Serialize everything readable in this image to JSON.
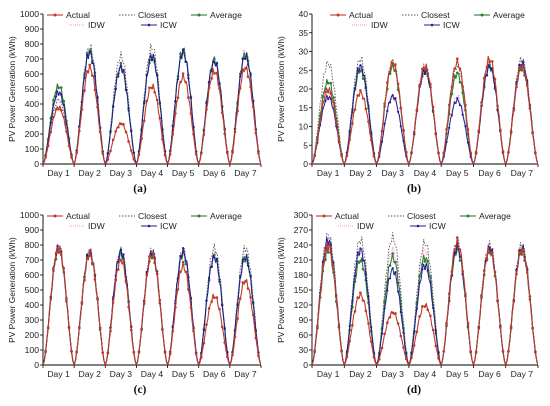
{
  "figure": {
    "panels": [
      "(a)",
      "(b)",
      "(c)",
      "(d)"
    ]
  },
  "colors": {
    "Actual": "#c0392b",
    "Closest": "#555555",
    "Average": "#2e7d32",
    "IDW": "#ff7bd5",
    "ICW": "#1f1f8f",
    "axis": "#000000",
    "background": "#ffffff"
  },
  "chart_data": [
    {
      "panel_label": "(a)",
      "type": "line",
      "ylabel": "PV Power Generation (kWh)",
      "ylim": [
        0,
        1000
      ],
      "yticks": [
        0,
        100,
        200,
        300,
        400,
        500,
        600,
        700,
        800,
        900,
        1000
      ],
      "x_labels": [
        "Day 1",
        "Day 2",
        "Day 3",
        "Day 4",
        "Day 5",
        "Day 6",
        "Day 7"
      ],
      "legend": [
        "Actual",
        "Closest",
        "Average",
        "IDW",
        "ICW"
      ],
      "legend_placement": "top-left",
      "series": [
        {
          "name": "Actual",
          "daily_peaks": [
            380,
            640,
            270,
            520,
            580,
            620,
            640
          ]
        },
        {
          "name": "Closest",
          "daily_peaks": [
            430,
            780,
            720,
            780,
            760,
            690,
            740
          ]
        },
        {
          "name": "Average",
          "daily_peaks": [
            520,
            750,
            650,
            720,
            750,
            690,
            730
          ]
        },
        {
          "name": "IDW",
          "daily_peaks": [
            500,
            760,
            660,
            740,
            750,
            690,
            730
          ]
        },
        {
          "name": "ICW",
          "daily_peaks": [
            480,
            740,
            640,
            720,
            740,
            680,
            720
          ]
        }
      ]
    },
    {
      "panel_label": "(b)",
      "type": "line",
      "ylabel": "PV Power Generation (kWh)",
      "ylim": [
        0,
        40
      ],
      "yticks": [
        0,
        5,
        10,
        15,
        20,
        25,
        30,
        35,
        40
      ],
      "x_labels": [
        "Day 1",
        "Day 2",
        "Day 3",
        "Day 4",
        "Day 5",
        "Day 6",
        "Day 7"
      ],
      "legend": [
        "Actual",
        "Closest",
        "Average",
        "IDW",
        "ICW"
      ],
      "legend_placement": "top-center",
      "series": [
        {
          "name": "Actual",
          "daily_peaks": [
            20,
            19,
            27,
            26,
            27,
            28,
            26
          ]
        },
        {
          "name": "Closest",
          "daily_peaks": [
            27,
            28,
            27,
            26,
            26,
            27,
            28
          ]
        },
        {
          "name": "Average",
          "daily_peaks": [
            22,
            25,
            26,
            25,
            24,
            26,
            26
          ]
        },
        {
          "name": "IDW",
          "daily_peaks": [
            19,
            26,
            18,
            26,
            18,
            26,
            27
          ]
        },
        {
          "name": "ICW",
          "daily_peaks": [
            18,
            26,
            18,
            25,
            17,
            26,
            27
          ]
        }
      ]
    },
    {
      "panel_label": "(c)",
      "type": "line",
      "ylabel": "PV Power Generation (kWh)",
      "ylim": [
        0,
        1000
      ],
      "yticks": [
        0,
        100,
        200,
        300,
        400,
        500,
        600,
        700,
        800,
        900,
        1000
      ],
      "x_labels": [
        "Day 1",
        "Day 2",
        "Day 3",
        "Day 4",
        "Day 5",
        "Day 6",
        "Day 7"
      ],
      "legend": [
        "Actual",
        "Closest",
        "Average",
        "IDW",
        "ICW"
      ],
      "legend_placement": "top-left",
      "series": [
        {
          "name": "Actual",
          "daily_peaks": [
            780,
            740,
            700,
            740,
            660,
            460,
            560
          ]
        },
        {
          "name": "Closest",
          "daily_peaks": [
            790,
            760,
            760,
            760,
            760,
            780,
            780
          ]
        },
        {
          "name": "Average",
          "daily_peaks": [
            770,
            740,
            740,
            740,
            740,
            720,
            720
          ]
        },
        {
          "name": "IDW",
          "daily_peaks": [
            780,
            745,
            750,
            750,
            750,
            730,
            730
          ]
        },
        {
          "name": "ICW",
          "daily_peaks": [
            785,
            750,
            755,
            755,
            755,
            720,
            720
          ]
        }
      ]
    },
    {
      "panel_label": "(d)",
      "type": "line",
      "ylabel": "PV Power Generation (kWh)",
      "ylim": [
        0,
        300
      ],
      "yticks": [
        0,
        30,
        60,
        90,
        120,
        150,
        180,
        210,
        240,
        270,
        300
      ],
      "x_labels": [
        "Day 1",
        "Day 2",
        "Day 3",
        "Day 4",
        "Day 5",
        "Day 6",
        "Day 7"
      ],
      "legend": [
        "Actual",
        "Closest",
        "Average",
        "IDW",
        "ICW"
      ],
      "legend_placement": "top-left",
      "series": [
        {
          "name": "Actual",
          "daily_peaks": [
            240,
            140,
            105,
            120,
            245,
            230,
            230
          ]
        },
        {
          "name": "Closest",
          "daily_peaks": [
            260,
            250,
            255,
            245,
            245,
            240,
            240
          ]
        },
        {
          "name": "Average",
          "daily_peaks": [
            230,
            210,
            215,
            215,
            230,
            230,
            230
          ]
        },
        {
          "name": "IDW",
          "daily_peaks": [
            245,
            230,
            230,
            230,
            235,
            235,
            235
          ]
        },
        {
          "name": "ICW",
          "daily_peaks": [
            250,
            230,
            190,
            200,
            235,
            235,
            235
          ]
        }
      ]
    }
  ]
}
